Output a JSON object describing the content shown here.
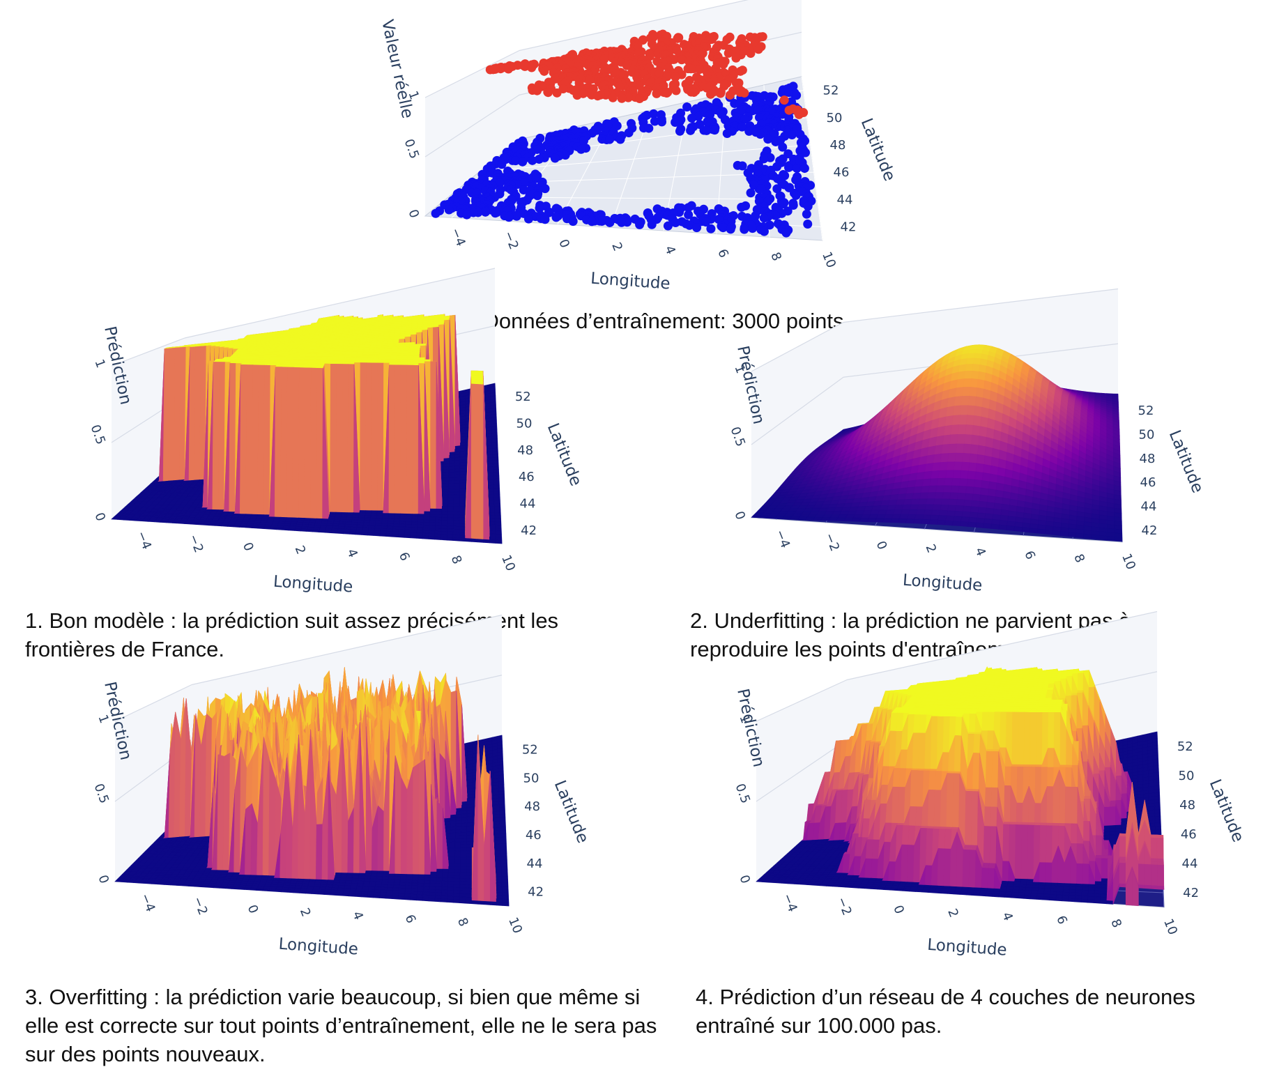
{
  "chart_data": [
    {
      "type": "scatter",
      "subtype": "scatter3d",
      "caption": "Données d’entraînement: 3000 points",
      "xlabel": "Longitude",
      "ylabel": "Latitude",
      "zlabel": "Valeur réelle",
      "xlim": [
        -5,
        10
      ],
      "ylim": [
        41,
        53
      ],
      "zlim": [
        0,
        1
      ],
      "x_ticks": [
        "−4",
        "−2",
        "0",
        "2",
        "4",
        "6",
        "8",
        "10"
      ],
      "y_ticks": [
        "42",
        "44",
        "46",
        "48",
        "50",
        "52"
      ],
      "z_ticks": [
        "0",
        "0.5",
        "1"
      ],
      "n_points": 3000,
      "series": [
        {
          "name": "",
          "value": 1,
          "color": "#e8392e",
          "region": "inside France (mainland + Corsica)"
        },
        {
          "name": "",
          "value": 0,
          "color": "#1111ee",
          "region": "outside France"
        }
      ]
    },
    {
      "type": "heatmap",
      "subtype": "surface3d",
      "caption": "1. Bon modèle : la prédiction suit assez précisément les frontières de France.",
      "xlabel": "Longitude",
      "ylabel": "Latitude",
      "zlabel": "Prédiction",
      "xlim": [
        -5,
        10
      ],
      "ylim": [
        41,
        53
      ],
      "zlim": [
        0,
        1
      ],
      "x_ticks": [
        "−4",
        "−2",
        "0",
        "2",
        "4",
        "6",
        "8",
        "10"
      ],
      "y_ticks": [
        "42",
        "44",
        "46",
        "48",
        "50",
        "52"
      ],
      "z_ticks": [
        "0",
        "0.5",
        "1"
      ],
      "shape": "sharp",
      "colorscale": [
        "#0d0887",
        "#7e03a8",
        "#cc4778",
        "#f89540",
        "#f0f921"
      ]
    },
    {
      "type": "heatmap",
      "subtype": "surface3d",
      "caption": "2. Underfitting : la prédiction ne parvient pas à reproduire les points d'entraînement.",
      "xlabel": "Longitude",
      "ylabel": "Latitude",
      "zlabel": "Prédiction",
      "xlim": [
        -5,
        10
      ],
      "ylim": [
        41,
        53
      ],
      "zlim": [
        0,
        1
      ],
      "x_ticks": [
        "−4",
        "−2",
        "0",
        "2",
        "4",
        "6",
        "8",
        "10"
      ],
      "y_ticks": [
        "42",
        "44",
        "46",
        "48",
        "50",
        "52"
      ],
      "z_ticks": [
        "0",
        "0.5",
        "1"
      ],
      "shape": "smooth",
      "colorscale": [
        "#0d0887",
        "#7e03a8",
        "#cc4778",
        "#f89540",
        "#f0f921"
      ]
    },
    {
      "type": "heatmap",
      "subtype": "surface3d",
      "caption": "3. Overfitting : la prédiction varie beaucoup, si bien que même si elle est correcte sur tout points d’entraînement, elle ne le sera pas sur des points nouveaux.",
      "xlabel": "Longitude",
      "ylabel": "Latitude",
      "zlabel": "Prédiction",
      "xlim": [
        -5,
        10
      ],
      "ylim": [
        41,
        53
      ],
      "zlim": [
        0,
        1
      ],
      "x_ticks": [
        "−4",
        "−2",
        "0",
        "2",
        "4",
        "6",
        "8",
        "10"
      ],
      "y_ticks": [
        "42",
        "44",
        "46",
        "48",
        "50",
        "52"
      ],
      "z_ticks": [
        "0",
        "0.5",
        "1"
      ],
      "shape": "noisy",
      "colorscale": [
        "#0d0887",
        "#7e03a8",
        "#cc4778",
        "#f89540",
        "#f0f921"
      ]
    },
    {
      "type": "heatmap",
      "subtype": "surface3d",
      "caption": "4. Prédiction d’un réseau de 4 couches de neurones entraîné sur 100.000 pas.",
      "xlabel": "Longitude",
      "ylabel": "Latitude",
      "zlabel": "Prédiction",
      "xlim": [
        -5,
        10
      ],
      "ylim": [
        41,
        53
      ],
      "zlim": [
        0,
        1
      ],
      "x_ticks": [
        "−4",
        "−2",
        "0",
        "2",
        "4",
        "6",
        "8",
        "10"
      ],
      "y_ticks": [
        "42",
        "44",
        "46",
        "48",
        "50",
        "52"
      ],
      "z_ticks": [
        "0",
        "0.5",
        "1"
      ],
      "shape": "rounded",
      "colorscale": [
        "#0d0887",
        "#7e03a8",
        "#cc4778",
        "#f89540",
        "#f0f921"
      ]
    }
  ]
}
